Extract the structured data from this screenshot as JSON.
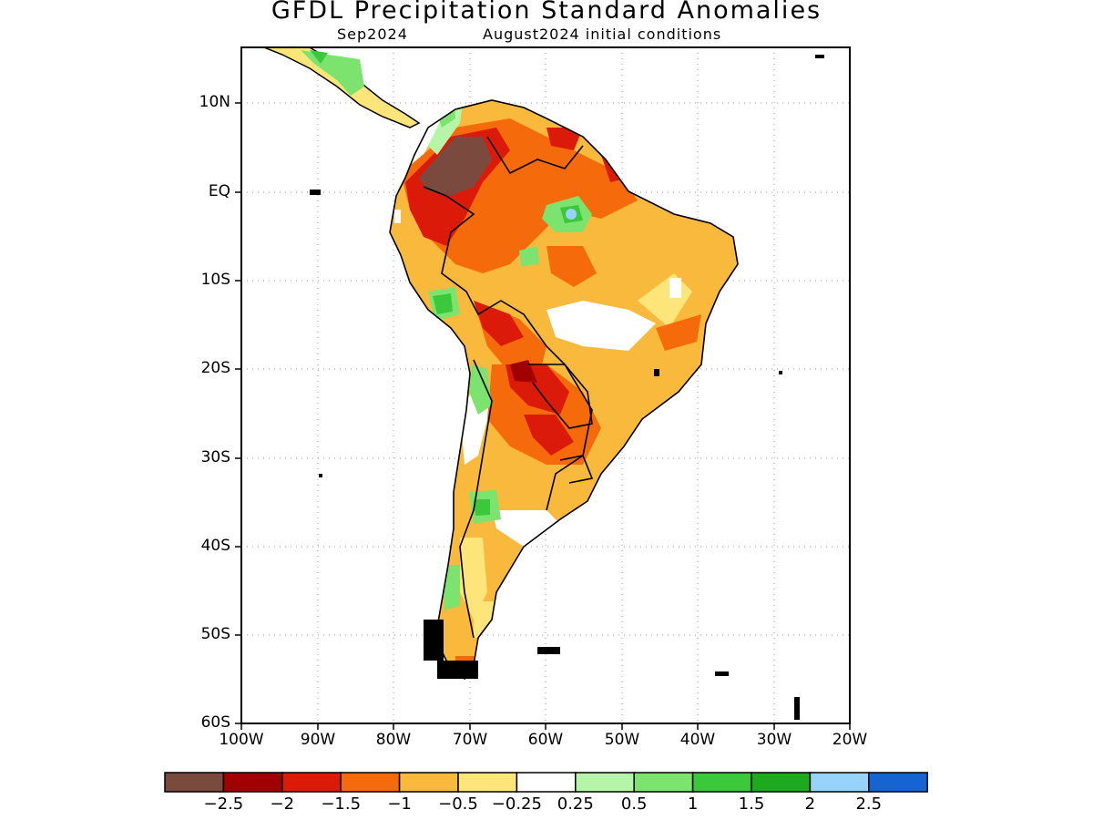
{
  "header": {
    "title": "GFDL Precipitation Standard Anomalies",
    "subtitle_month": "Sep2024",
    "subtitle_init": "August2024 initial conditions"
  },
  "axes": {
    "lat_labels": [
      "10N",
      "EQ",
      "10S",
      "20S",
      "30S",
      "40S",
      "50S",
      "60S"
    ],
    "lon_labels": [
      "100W",
      "90W",
      "80W",
      "70W",
      "60W",
      "50W",
      "40W",
      "30W",
      "20W"
    ]
  },
  "colorbar": {
    "colors": [
      "#7a4a3f",
      "#a00000",
      "#dc1a0a",
      "#f56a0a",
      "#f9b93c",
      "#fde57a",
      "#ffffff",
      "#b4f5a8",
      "#7de36f",
      "#3cc83c",
      "#1eaa1e",
      "#96d2fa",
      "#1464d2"
    ],
    "labels": [
      "−2.5",
      "−2",
      "−1.5",
      "−1",
      "−0.5",
      "−0.25",
      "0.25",
      "0.5",
      "1",
      "1.5",
      "2",
      "2.5"
    ]
  }
}
